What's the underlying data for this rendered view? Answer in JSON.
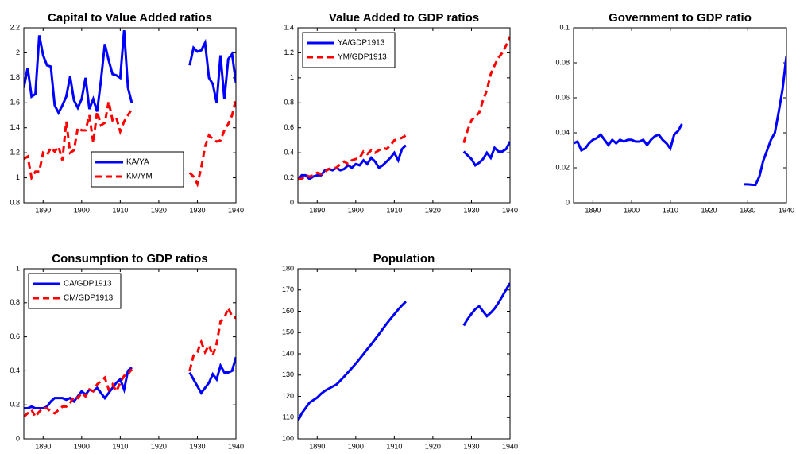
{
  "chart_data": [
    {
      "type": "line",
      "title": "Capital to Value Added ratios",
      "x": [
        1885,
        1886,
        1887,
        1888,
        1889,
        1890,
        1891,
        1892,
        1893,
        1894,
        1895,
        1896,
        1897,
        1898,
        1899,
        1900,
        1901,
        1902,
        1903,
        1904,
        1905,
        1906,
        1907,
        1908,
        1909,
        1910,
        1911,
        1912,
        1913,
        1914,
        1915,
        1916,
        1917,
        1918,
        1919,
        1920,
        1921,
        1922,
        1923,
        1924,
        1925,
        1926,
        1927,
        1928,
        1929,
        1930,
        1931,
        1932,
        1933,
        1934,
        1935,
        1936,
        1937,
        1938,
        1939,
        1940
      ],
      "series": [
        {
          "name": "KA/YA",
          "color": "#0000ff",
          "dash": false,
          "values": [
            1.72,
            1.88,
            1.65,
            1.67,
            2.14,
            1.98,
            1.9,
            1.89,
            1.58,
            1.52,
            1.58,
            1.65,
            1.81,
            1.62,
            1.56,
            1.63,
            1.8,
            1.55,
            1.63,
            1.53,
            1.78,
            2.07,
            1.94,
            1.83,
            1.82,
            1.8,
            2.18,
            1.72,
            1.6,
            null,
            null,
            null,
            null,
            null,
            null,
            null,
            null,
            null,
            null,
            null,
            null,
            null,
            null,
            1.9,
            2.04,
            2.01,
            2.02,
            2.08,
            1.8,
            1.75,
            1.6,
            1.98,
            1.63,
            1.95,
            1.99,
            1.76
          ]
        },
        {
          "name": "KM/YM",
          "color": "#ff0000",
          "dash": true,
          "values": [
            1.15,
            1.17,
            1.0,
            1.05,
            1.05,
            1.2,
            1.18,
            1.24,
            1.21,
            1.25,
            1.14,
            1.45,
            1.2,
            1.22,
            1.4,
            1.38,
            1.38,
            1.5,
            1.28,
            1.53,
            1.42,
            1.44,
            1.61,
            1.46,
            1.48,
            1.37,
            1.45,
            1.5,
            1.55,
            null,
            null,
            null,
            null,
            null,
            null,
            null,
            null,
            null,
            null,
            null,
            null,
            null,
            null,
            1.04,
            1.01,
            0.95,
            1.08,
            1.25,
            1.34,
            1.31,
            1.29,
            1.3,
            1.38,
            1.43,
            1.5,
            1.63
          ]
        }
      ],
      "xlim": [
        1885,
        1940
      ],
      "xticks": [
        1890,
        1900,
        1910,
        1920,
        1930,
        1940
      ],
      "ylim": [
        0.8,
        2.2
      ],
      "yticks": [
        0.8,
        1,
        1.2,
        1.4,
        1.6,
        1.8,
        2,
        2.2
      ],
      "grid": false,
      "legend": "lower right"
    },
    {
      "type": "line",
      "title": "Value Added to GDP ratios",
      "x": [
        1885,
        1886,
        1887,
        1888,
        1889,
        1890,
        1891,
        1892,
        1893,
        1894,
        1895,
        1896,
        1897,
        1898,
        1899,
        1900,
        1901,
        1902,
        1903,
        1904,
        1905,
        1906,
        1907,
        1908,
        1909,
        1910,
        1911,
        1912,
        1913,
        1914,
        1915,
        1916,
        1917,
        1918,
        1919,
        1920,
        1921,
        1922,
        1923,
        1924,
        1925,
        1926,
        1927,
        1928,
        1929,
        1930,
        1931,
        1932,
        1933,
        1934,
        1935,
        1936,
        1937,
        1938,
        1939,
        1940
      ],
      "series": [
        {
          "name": "YA/GDP1913",
          "color": "#0000ff",
          "dash": false,
          "values": [
            0.18,
            0.22,
            0.22,
            0.19,
            0.21,
            0.22,
            0.22,
            0.26,
            0.27,
            0.26,
            0.28,
            0.26,
            0.27,
            0.3,
            0.28,
            0.31,
            0.3,
            0.34,
            0.31,
            0.36,
            0.33,
            0.28,
            0.3,
            0.33,
            0.36,
            0.4,
            0.34,
            0.43,
            0.46,
            null,
            null,
            null,
            null,
            null,
            null,
            null,
            null,
            null,
            null,
            null,
            null,
            null,
            null,
            0.41,
            0.38,
            0.35,
            0.3,
            0.32,
            0.35,
            0.4,
            0.36,
            0.44,
            0.41,
            0.41,
            0.43,
            0.49
          ]
        },
        {
          "name": "YM/GDP1913",
          "color": "#ff0000",
          "dash": true,
          "values": [
            0.19,
            0.19,
            0.22,
            0.21,
            0.22,
            0.24,
            0.23,
            0.25,
            0.27,
            0.28,
            0.28,
            0.31,
            0.33,
            0.31,
            0.34,
            0.35,
            0.36,
            0.41,
            0.39,
            0.42,
            0.4,
            0.42,
            0.44,
            0.43,
            0.46,
            0.5,
            0.51,
            0.52,
            0.54,
            null,
            null,
            null,
            null,
            null,
            null,
            null,
            null,
            null,
            null,
            null,
            null,
            null,
            null,
            0.48,
            0.58,
            0.66,
            0.69,
            0.72,
            0.82,
            0.9,
            1.03,
            1.1,
            1.16,
            1.2,
            1.26,
            1.33
          ]
        }
      ],
      "xlim": [
        1885,
        1940
      ],
      "xticks": [
        1890,
        1900,
        1910,
        1920,
        1930,
        1940
      ],
      "ylim": [
        0,
        1.4
      ],
      "yticks": [
        0,
        0.2,
        0.4,
        0.6,
        0.8,
        1,
        1.2,
        1.4
      ],
      "grid": false,
      "legend": "upper left"
    },
    {
      "type": "line",
      "title": "Government to GDP ratio",
      "x": [
        1885,
        1886,
        1887,
        1888,
        1889,
        1890,
        1891,
        1892,
        1893,
        1894,
        1895,
        1896,
        1897,
        1898,
        1899,
        1900,
        1901,
        1902,
        1903,
        1904,
        1905,
        1906,
        1907,
        1908,
        1909,
        1910,
        1911,
        1912,
        1913,
        1914,
        1915,
        1916,
        1917,
        1918,
        1919,
        1920,
        1921,
        1922,
        1923,
        1924,
        1925,
        1926,
        1927,
        1928,
        1929,
        1930,
        1931,
        1932,
        1933,
        1934,
        1935,
        1936,
        1937,
        1938,
        1939,
        1940
      ],
      "series": [
        {
          "color": "#0000ff",
          "dash": false,
          "values": [
            0.034,
            0.035,
            0.03,
            0.031,
            0.034,
            0.036,
            0.037,
            0.039,
            0.036,
            0.033,
            0.036,
            0.034,
            0.036,
            0.035,
            0.036,
            0.036,
            0.035,
            0.035,
            0.036,
            0.033,
            0.036,
            0.038,
            0.039,
            0.036,
            0.034,
            0.031,
            0.039,
            0.041,
            0.045,
            null,
            null,
            null,
            null,
            null,
            null,
            null,
            null,
            null,
            null,
            null,
            null,
            null,
            null,
            null,
            0.0105,
            0.0105,
            0.0103,
            0.0102,
            0.015,
            0.024,
            0.03,
            0.036,
            0.04,
            0.052,
            0.065,
            0.084
          ]
        }
      ],
      "xlim": [
        1885,
        1940
      ],
      "xticks": [
        1890,
        1900,
        1910,
        1920,
        1930,
        1940
      ],
      "ylim": [
        0,
        0.1
      ],
      "yticks": [
        0,
        0.02,
        0.04,
        0.06,
        0.08,
        0.1
      ],
      "grid": false
    },
    {
      "type": "line",
      "title": "Consumption to GDP ratios",
      "x": [
        1885,
        1886,
        1887,
        1888,
        1889,
        1890,
        1891,
        1892,
        1893,
        1894,
        1895,
        1896,
        1897,
        1898,
        1899,
        1900,
        1901,
        1902,
        1903,
        1904,
        1905,
        1906,
        1907,
        1908,
        1909,
        1910,
        1911,
        1912,
        1913,
        1914,
        1915,
        1916,
        1917,
        1918,
        1919,
        1920,
        1921,
        1922,
        1923,
        1924,
        1925,
        1926,
        1927,
        1928,
        1929,
        1930,
        1931,
        1932,
        1933,
        1934,
        1935,
        1936,
        1937,
        1938,
        1939,
        1940
      ],
      "series": [
        {
          "name": "CA/GDP1913",
          "color": "#0000ff",
          "dash": false,
          "values": [
            0.18,
            0.18,
            0.19,
            0.18,
            0.18,
            0.18,
            0.19,
            0.22,
            0.24,
            0.24,
            0.24,
            0.23,
            0.24,
            0.22,
            0.25,
            0.28,
            0.26,
            0.29,
            0.28,
            0.3,
            0.27,
            0.24,
            0.27,
            0.3,
            0.33,
            0.35,
            0.29,
            0.4,
            0.42,
            null,
            null,
            null,
            null,
            null,
            null,
            null,
            null,
            null,
            null,
            null,
            null,
            null,
            null,
            0.39,
            0.35,
            0.31,
            0.27,
            0.3,
            0.33,
            0.38,
            0.35,
            0.43,
            0.39,
            0.39,
            0.4,
            0.48
          ]
        },
        {
          "name": "CM/GDP1913",
          "color": "#ff0000",
          "dash": true,
          "values": [
            0.13,
            0.15,
            0.17,
            0.13,
            0.16,
            0.18,
            0.18,
            0.16,
            0.15,
            0.17,
            0.19,
            0.19,
            0.21,
            0.25,
            0.24,
            0.27,
            0.25,
            0.29,
            0.28,
            0.32,
            0.34,
            0.36,
            0.29,
            0.32,
            0.28,
            0.33,
            0.37,
            0.38,
            0.41,
            null,
            null,
            null,
            null,
            null,
            null,
            null,
            null,
            null,
            null,
            null,
            null,
            null,
            null,
            0.4,
            0.49,
            0.51,
            0.57,
            0.51,
            0.55,
            0.49,
            0.56,
            0.69,
            0.71,
            0.77,
            0.72,
            0.71
          ]
        }
      ],
      "xlim": [
        1885,
        1940
      ],
      "xticks": [
        1890,
        1900,
        1910,
        1920,
        1930,
        1940
      ],
      "ylim": [
        0,
        1
      ],
      "yticks": [
        0,
        0.2,
        0.4,
        0.6,
        0.8,
        1
      ],
      "grid": false,
      "legend": "upper left"
    },
    {
      "type": "line",
      "title": "Population",
      "x": [
        1885,
        1886,
        1887,
        1888,
        1889,
        1890,
        1891,
        1892,
        1893,
        1894,
        1895,
        1896,
        1897,
        1898,
        1899,
        1900,
        1901,
        1902,
        1903,
        1904,
        1905,
        1906,
        1907,
        1908,
        1909,
        1910,
        1911,
        1912,
        1913,
        1914,
        1915,
        1916,
        1917,
        1918,
        1919,
        1920,
        1921,
        1922,
        1923,
        1924,
        1925,
        1926,
        1927,
        1928,
        1929,
        1930,
        1931,
        1932,
        1933,
        1934,
        1935,
        1936,
        1937,
        1938,
        1939,
        1940
      ],
      "series": [
        {
          "color": "#0000ff",
          "dash": false,
          "values": [
            108.5,
            112,
            114.5,
            117,
            118.2,
            119.4,
            121.2,
            122.6,
            123.6,
            124.6,
            125.6,
            127.4,
            129.3,
            131.3,
            133.3,
            135.4,
            137.6,
            139.9,
            142.2,
            144.4,
            146.8,
            149.2,
            151.7,
            154.1,
            156.4,
            158.6,
            160.8,
            162.8,
            164.6,
            null,
            null,
            null,
            null,
            null,
            null,
            null,
            null,
            null,
            null,
            null,
            null,
            null,
            null,
            153.3,
            156.3,
            158.8,
            161,
            162.4,
            160,
            157.7,
            159.3,
            161.3,
            164,
            167,
            170.2,
            173.2
          ]
        }
      ],
      "xlim": [
        1885,
        1940
      ],
      "xticks": [
        1890,
        1900,
        1910,
        1920,
        1930,
        1940
      ],
      "ylim": [
        100,
        180
      ],
      "yticks": [
        100,
        110,
        120,
        130,
        140,
        150,
        160,
        170,
        180
      ],
      "grid": false
    }
  ]
}
